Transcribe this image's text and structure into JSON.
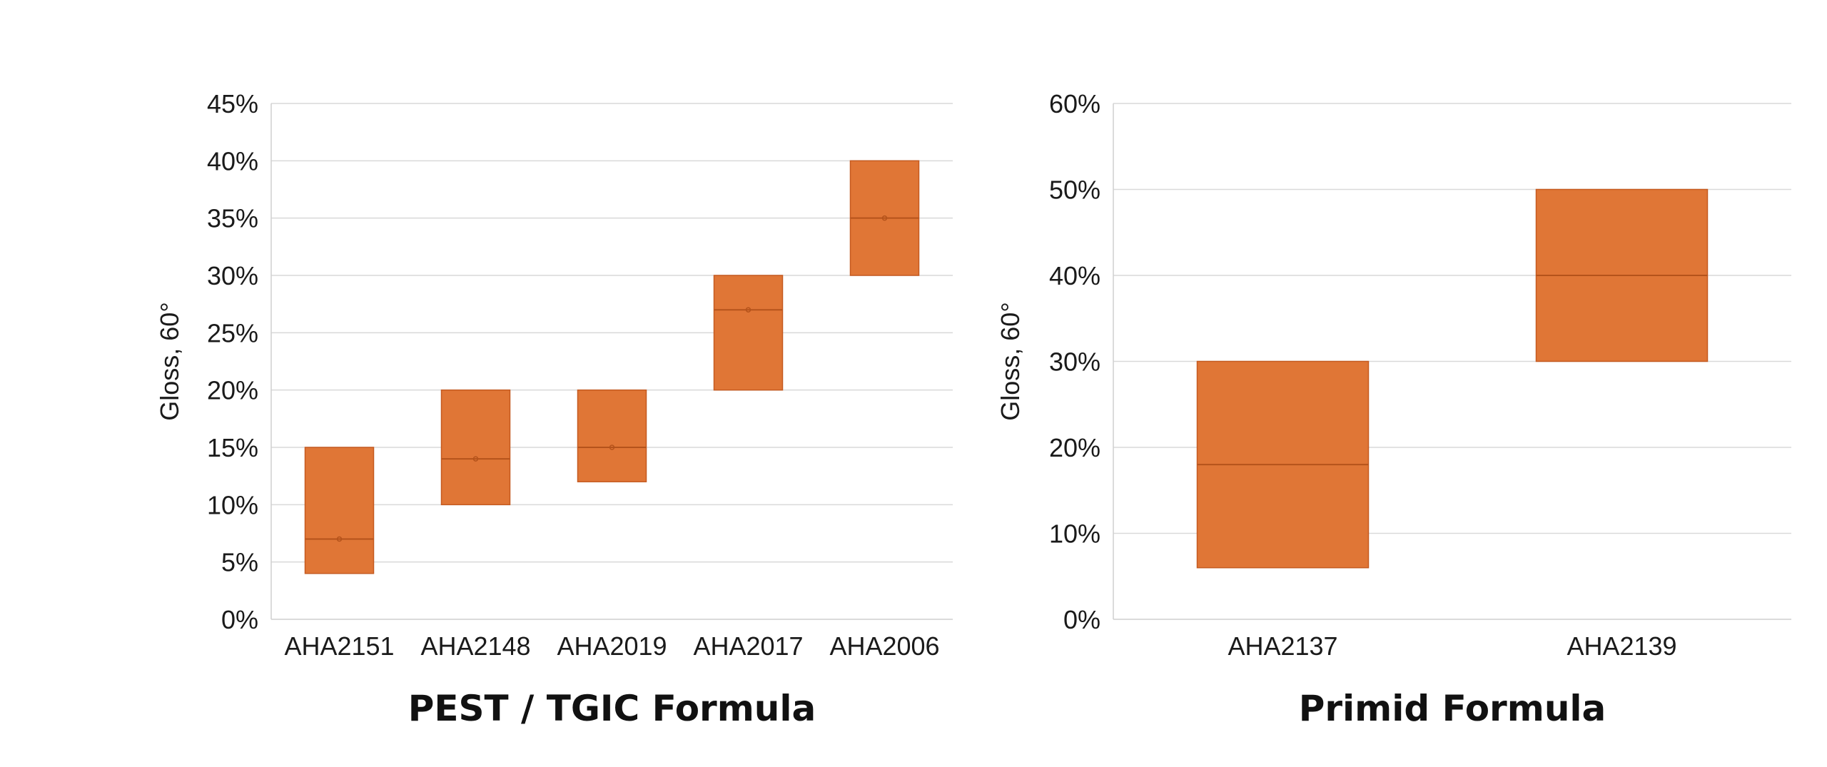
{
  "colors": {
    "box_fill": "#e07636",
    "box_stroke": "#c55a20",
    "median": "#b5531b",
    "grid": "#d9d9d9"
  },
  "chart_data": [
    {
      "type": "box",
      "subtitle": "PEST / TGIC Formula",
      "ylabel": "Gloss, 60°",
      "ylim": [
        0,
        45
      ],
      "yticks": [
        0,
        5,
        10,
        15,
        20,
        25,
        30,
        35,
        40,
        45
      ],
      "ytick_labels": [
        "0%",
        "5%",
        "10%",
        "15%",
        "20%",
        "25%",
        "30%",
        "35%",
        "40%",
        "45%"
      ],
      "grid": true,
      "categories": [
        "AHA2151",
        "AHA2148",
        "AHA2019",
        "AHA2017",
        "AHA2006"
      ],
      "boxes": [
        {
          "low": 4,
          "high": 15,
          "median": 7,
          "mean": 7
        },
        {
          "low": 10,
          "high": 20,
          "median": 14,
          "mean": 14
        },
        {
          "low": 12,
          "high": 20,
          "median": 15,
          "mean": 15
        },
        {
          "low": 20,
          "high": 30,
          "median": 27,
          "mean": 27
        },
        {
          "low": 30,
          "high": 40,
          "median": 35,
          "mean": 35
        }
      ]
    },
    {
      "type": "box",
      "subtitle": "Primid Formula",
      "ylabel": "Gloss, 60°",
      "ylim": [
        0,
        60
      ],
      "yticks": [
        0,
        10,
        20,
        30,
        40,
        50,
        60
      ],
      "ytick_labels": [
        "0%",
        "10%",
        "20%",
        "30%",
        "40%",
        "50%",
        "60%"
      ],
      "grid": true,
      "categories": [
        "AHA2137",
        "AHA2139"
      ],
      "boxes": [
        {
          "low": 6,
          "high": 30,
          "median": 18
        },
        {
          "low": 30,
          "high": 50,
          "median": 40
        }
      ]
    }
  ]
}
